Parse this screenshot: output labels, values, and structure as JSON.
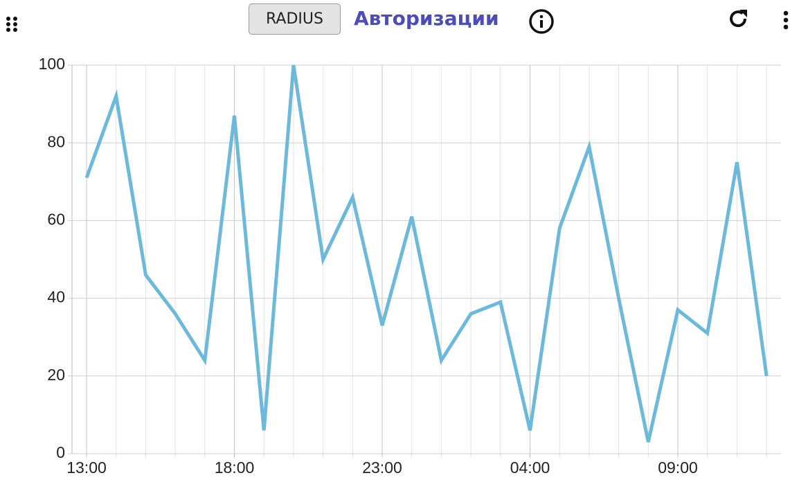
{
  "header": {
    "button": "RADIUS",
    "title": "Авторизации"
  },
  "chart_data": {
    "type": "line",
    "categories": [
      "13:00",
      null,
      null,
      null,
      null,
      "18:00",
      null,
      null,
      null,
      null,
      "23:00",
      null,
      null,
      null,
      null,
      "04:00",
      null,
      null,
      null,
      null,
      "09:00",
      null,
      null,
      null
    ],
    "series": [
      {
        "color": "#6cb9dc",
        "values": [
          71,
          92,
          46,
          36,
          24,
          87,
          6,
          100,
          50,
          66,
          33,
          61,
          24,
          36,
          39,
          6,
          58,
          79,
          40,
          3,
          37,
          31,
          75,
          20
        ]
      }
    ],
    "ylim": [
      0,
      100
    ],
    "yticks": [
      0,
      20,
      40,
      60,
      80,
      100
    ],
    "grid": true
  }
}
